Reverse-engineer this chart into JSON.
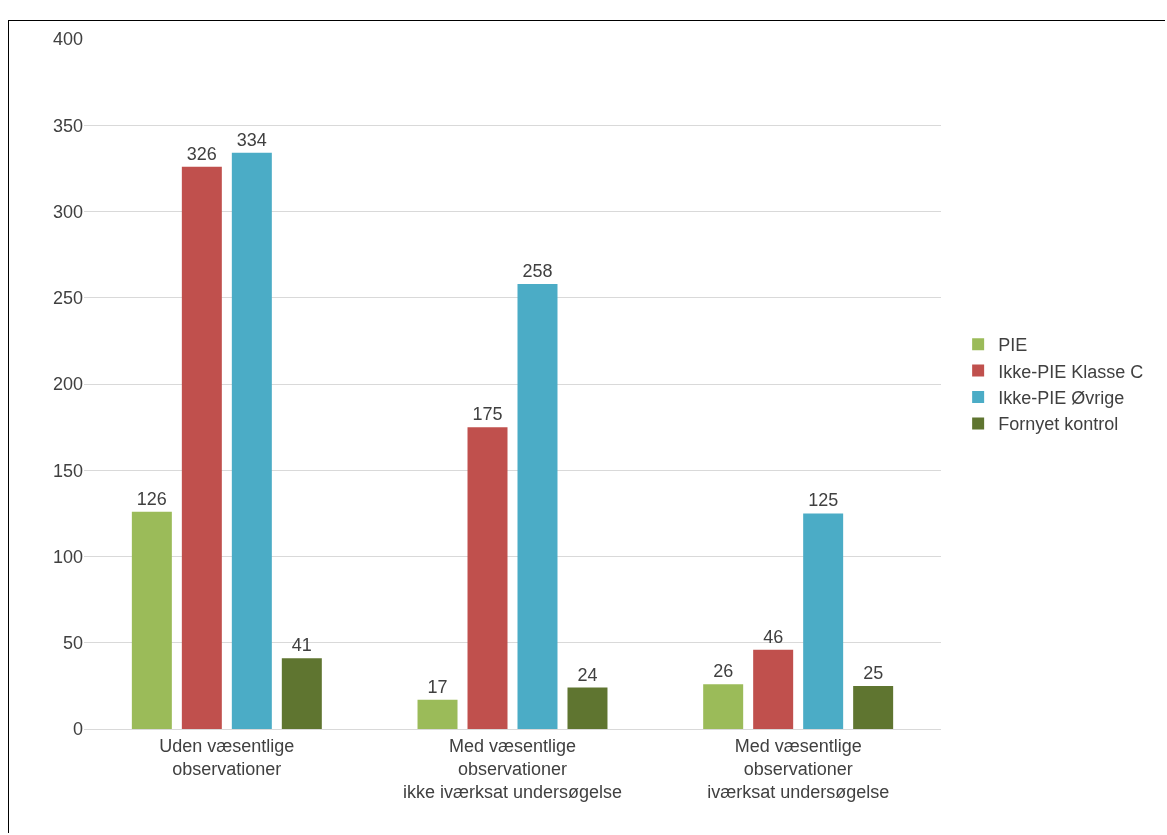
{
  "chart_data": {
    "type": "bar",
    "categories": [
      "Uden væsentlige\nobservationer",
      "Med væsentlige\nobservationer\nikke iværksat undersøgelse",
      "Med væsentlige\nobservationer\niværksat undersøgelse"
    ],
    "series": [
      {
        "name": "PIE",
        "color": "#9bbb59",
        "values": [
          126,
          17,
          26
        ]
      },
      {
        "name": "Ikke-PIE Klasse C",
        "color": "#c0504d",
        "values": [
          326,
          175,
          46
        ]
      },
      {
        "name": "Ikke-PIE Øvrige",
        "color": "#4bacc6",
        "values": [
          334,
          258,
          125
        ]
      },
      {
        "name": "Fornyet kontrol",
        "color": "#5f7530",
        "values": [
          41,
          24,
          25
        ]
      }
    ],
    "ylim": [
      0,
      400
    ],
    "yticks": [
      0,
      50,
      100,
      150,
      200,
      250,
      300,
      350,
      400
    ],
    "grid": "y",
    "legend": "right",
    "data_labels": true
  }
}
